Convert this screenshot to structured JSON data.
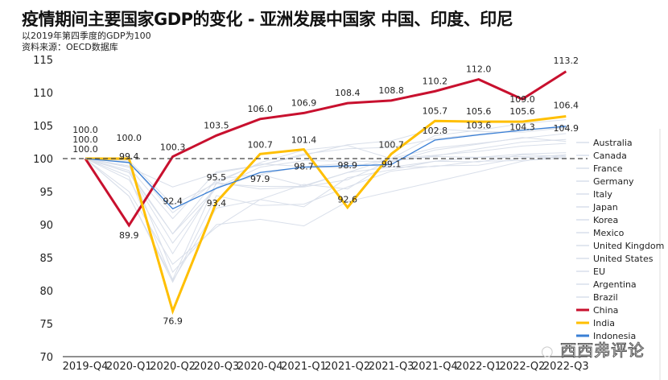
{
  "title": "疫情期间主要国家GDP的变化 - 亚洲发展中国家 中国、印度、印尼",
  "subtitle": "以2019年第四季度的GDP为100",
  "source": "资料来源：OECD数据库",
  "watermark": "西西弗评论",
  "chart_data": {
    "type": "line",
    "title": "疫情期间主要国家GDP的变化 - 亚洲发展中国家 中国、印度、印尼",
    "categories": [
      "2019-Q4",
      "2020-Q1",
      "2020-Q2",
      "2020-Q3",
      "2020-Q4",
      "2021-Q1",
      "2021-Q2",
      "2021-Q3",
      "2021-Q4",
      "2022-Q1",
      "2022-Q2",
      "2022-Q3"
    ],
    "ylim": [
      70,
      115
    ],
    "yticks": [
      70,
      75,
      80,
      85,
      90,
      95,
      100,
      105,
      110,
      115
    ],
    "reference_line": 100,
    "grid": false,
    "legend_position": "right",
    "series": [
      {
        "name": "Australia",
        "color": "#d9dfea",
        "highlight": false,
        "values": [
          100,
          99.7,
          93.0,
          96.3,
          99.4,
          101.3,
          102.0,
          100.0,
          103.5,
          104.3,
          105.3,
          105.9
        ]
      },
      {
        "name": "Canada",
        "color": "#d9dfea",
        "highlight": false,
        "values": [
          100,
          97.9,
          87.2,
          95.6,
          97.6,
          98.8,
          98.6,
          100.0,
          101.6,
          102.3,
          103.1,
          103.8
        ]
      },
      {
        "name": "France",
        "color": "#d9dfea",
        "highlight": false,
        "values": [
          100,
          94.3,
          81.7,
          96.4,
          95.4,
          95.7,
          96.8,
          99.7,
          100.3,
          100.2,
          100.7,
          100.9
        ]
      },
      {
        "name": "Germany",
        "color": "#d9dfea",
        "highlight": false,
        "values": [
          100,
          98.2,
          88.6,
          96.9,
          97.6,
          95.9,
          97.9,
          98.7,
          98.8,
          99.6,
          99.7,
          100.1
        ]
      },
      {
        "name": "Italy",
        "color": "#d9dfea",
        "highlight": false,
        "values": [
          100,
          94.3,
          81.3,
          94.4,
          92.9,
          93.1,
          95.7,
          98.1,
          98.9,
          99.0,
          100.1,
          100.6
        ]
      },
      {
        "name": "Japan",
        "color": "#d9dfea",
        "highlight": false,
        "values": [
          100,
          99.5,
          91.8,
          96.6,
          99.2,
          98.8,
          99.3,
          98.7,
          99.6,
          99.5,
          100.6,
          100.3
        ]
      },
      {
        "name": "Korea",
        "color": "#d9dfea",
        "highlight": false,
        "values": [
          100,
          98.7,
          95.7,
          97.8,
          99.0,
          100.7,
          101.5,
          101.7,
          103.0,
          103.7,
          104.4,
          104.7
        ]
      },
      {
        "name": "Mexico",
        "color": "#d9dfea",
        "highlight": false,
        "values": [
          100,
          98.9,
          82.8,
          90.0,
          90.8,
          89.8,
          93.5,
          95.0,
          96.5,
          98.0,
          99.6,
          100.5
        ]
      },
      {
        "name": "United Kingdom",
        "color": "#d9dfea",
        "highlight": false,
        "values": [
          100,
          97.3,
          81.5,
          92.5,
          93.8,
          92.7,
          97.1,
          98.3,
          99.6,
          100.2,
          100.3,
          100.1
        ]
      },
      {
        "name": "United States",
        "color": "#d9dfea",
        "highlight": false,
        "values": [
          100,
          98.7,
          90.9,
          98.0,
          99.0,
          100.5,
          102.1,
          102.7,
          104.5,
          104.1,
          104.0,
          104.7
        ]
      },
      {
        "name": "EU",
        "color": "#d9dfea",
        "highlight": false,
        "values": [
          100,
          96.8,
          85.6,
          96.2,
          95.8,
          95.8,
          97.9,
          100.0,
          100.5,
          101.1,
          101.9,
          102.3
        ]
      },
      {
        "name": "Argentina",
        "color": "#d9dfea",
        "highlight": false,
        "values": [
          100,
          95.0,
          84.0,
          89.6,
          93.8,
          96.1,
          95.4,
          99.5,
          101.3,
          102.2,
          103.2,
          102.6
        ]
      },
      {
        "name": "Brazil",
        "color": "#d9dfea",
        "highlight": false,
        "values": [
          100,
          97.9,
          88.6,
          95.6,
          98.7,
          99.7,
          99.6,
          99.6,
          100.4,
          101.5,
          102.5,
          102.9
        ]
      },
      {
        "name": "China",
        "color": "#c8102e",
        "highlight": true,
        "values": [
          100.0,
          89.9,
          100.3,
          103.5,
          106.0,
          106.9,
          108.4,
          108.8,
          110.2,
          112.0,
          109.0,
          113.2
        ]
      },
      {
        "name": "India",
        "color": "#ffbf00",
        "highlight": true,
        "values": [
          100.0,
          100.0,
          76.9,
          93.4,
          100.7,
          101.4,
          92.6,
          100.7,
          105.7,
          105.6,
          105.6,
          106.4
        ]
      },
      {
        "name": "Indonesia",
        "color": "#3a7fd5",
        "highlight": true,
        "values": [
          100.0,
          99.4,
          92.4,
          95.5,
          97.9,
          98.7,
          98.9,
          99.1,
          102.8,
          103.6,
          104.3,
          104.9
        ]
      }
    ]
  }
}
